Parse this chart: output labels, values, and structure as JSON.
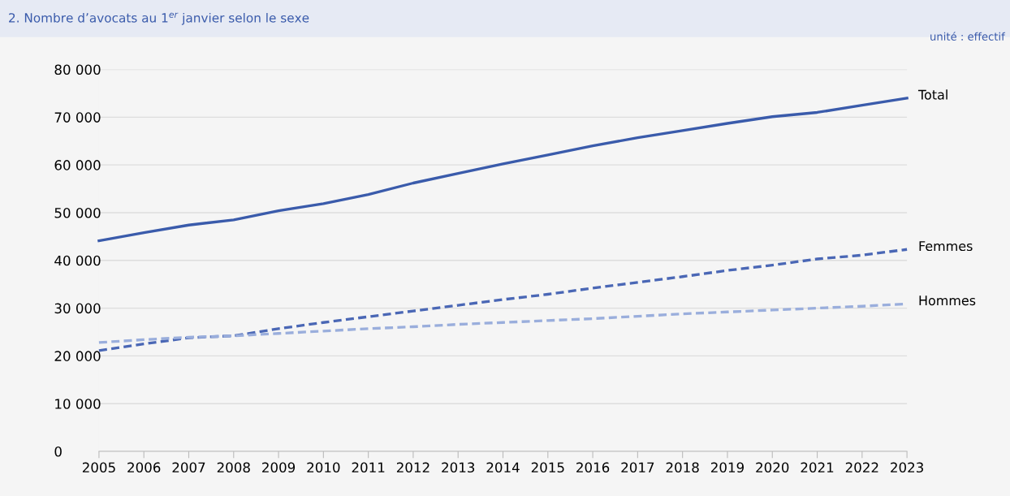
{
  "chart_data": {
    "type": "line",
    "title": "2. Nombre d’avocats au 1$^{er}$ janvier selon le sexe",
    "annotations": [
      "unité : effectif"
    ],
    "x": [
      2005,
      2006,
      2007,
      2008,
      2009,
      2010,
      2011,
      2012,
      2013,
      2014,
      2015,
      2016,
      2017,
      2018,
      2019,
      2020,
      2021,
      2022,
      2023
    ],
    "series": [
      {
        "name": "Total",
        "color": "#3a5bab",
        "line_style": "solid",
        "values": [
          44100,
          45800,
          47400,
          48500,
          50400,
          51900,
          53800,
          56200,
          58200,
          60200,
          62100,
          64000,
          65700,
          67200,
          68700,
          70100,
          71000,
          72500,
          74000
        ]
      },
      {
        "name": "Femmes",
        "color": "#4a67b5",
        "line_style": "dashed",
        "values": [
          21100,
          22500,
          23800,
          24200,
          25700,
          27000,
          28200,
          29400,
          30600,
          31800,
          32900,
          34200,
          35400,
          36600,
          37900,
          39000,
          40300,
          41100,
          42300
        ]
      },
      {
        "name": "Hommes",
        "color": "#9aaedc",
        "line_style": "dashed",
        "values": [
          22800,
          23400,
          23900,
          24200,
          24700,
          25200,
          25700,
          26100,
          26600,
          27000,
          27400,
          27800,
          28300,
          28800,
          29200,
          29600,
          30000,
          30400,
          30900
        ]
      }
    ],
    "xlim": [
      2005,
      2023
    ],
    "xticks": [
      2005,
      2006,
      2007,
      2008,
      2009,
      2010,
      2011,
      2012,
      2013,
      2014,
      2015,
      2016,
      2017,
      2018,
      2019,
      2020,
      2021,
      2022,
      2023
    ],
    "ylim": [
      0,
      80000
    ],
    "yticks": [
      0,
      {
        "value": 10000,
        "label": "10 000"
      },
      {
        "value": 20000,
        "label": "20 000"
      },
      {
        "value": 30000,
        "label": "30 000"
      },
      {
        "value": 40000,
        "label": "40 000"
      },
      {
        "value": 50000,
        "label": "50 000"
      },
      {
        "value": 60000,
        "label": "60 000"
      },
      {
        "value": 70000,
        "label": "70 000"
      },
      {
        "value": 80000,
        "label": "80 000"
      }
    ],
    "grid": "y",
    "legend": false,
    "marker": "none"
  }
}
